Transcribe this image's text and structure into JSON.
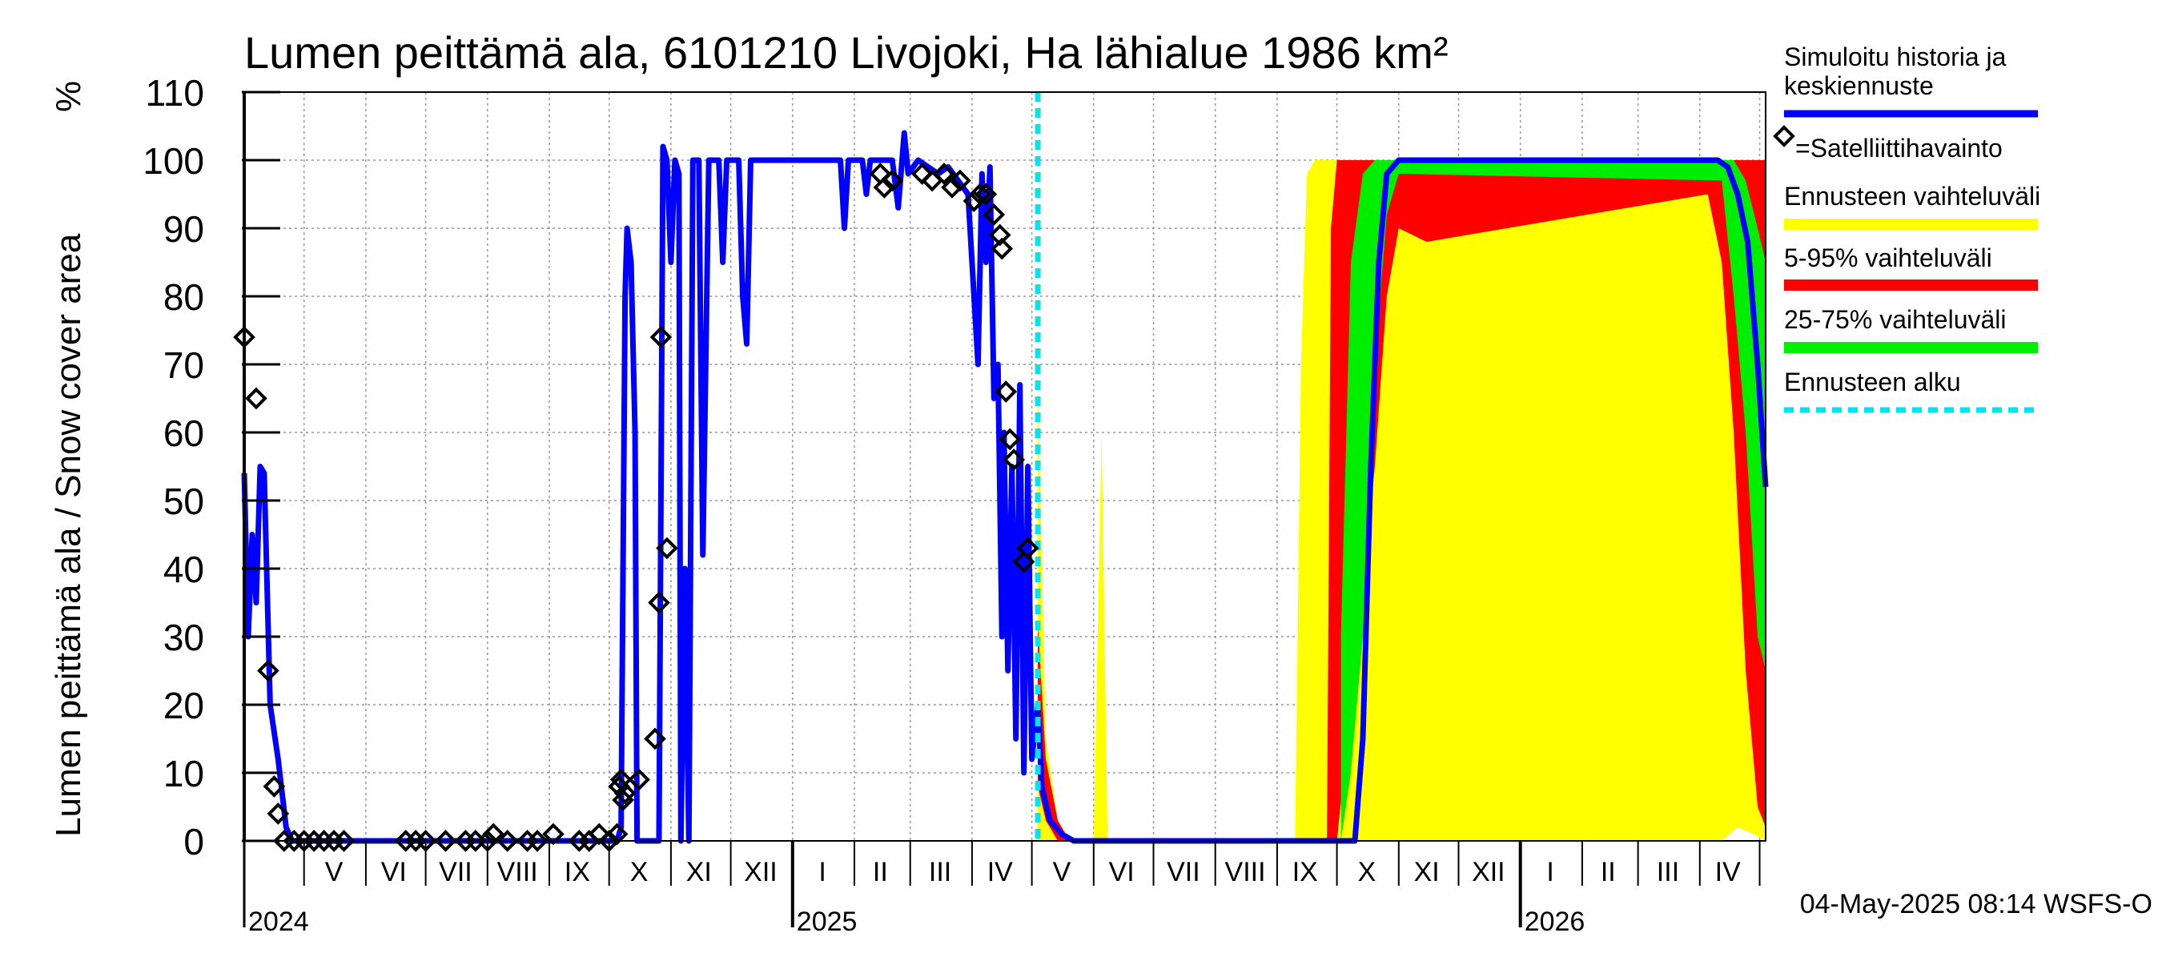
{
  "chart_data": {
    "type": "area",
    "title": "Lumen peittämä ala, 6101210 Livojoki, Ha lähialue 1986 km²",
    "ylabel": "Lumen peittämä ala / Snow cover area",
    "yunit": "%",
    "ylim": [
      0,
      110
    ],
    "yticks": [
      0,
      10,
      20,
      30,
      40,
      50,
      60,
      70,
      80,
      90,
      100,
      110
    ],
    "xlim": [
      "2024-04-01",
      "2026-05-04"
    ],
    "grid": true,
    "forecast_start": "2025-05-04",
    "month_labels": [
      {
        "label": "V",
        "date": "2024-05-16"
      },
      {
        "label": "VI",
        "date": "2024-06-15"
      },
      {
        "label": "VII",
        "date": "2024-07-16"
      },
      {
        "label": "VIII",
        "date": "2024-08-16"
      },
      {
        "label": "IX",
        "date": "2024-09-15"
      },
      {
        "label": "X",
        "date": "2024-10-16"
      },
      {
        "label": "XI",
        "date": "2024-11-15"
      },
      {
        "label": "XII",
        "date": "2024-12-16"
      },
      {
        "label": "I",
        "date": "2025-01-16"
      },
      {
        "label": "II",
        "date": "2025-02-14"
      },
      {
        "label": "III",
        "date": "2025-03-16"
      },
      {
        "label": "IV",
        "date": "2025-04-15"
      },
      {
        "label": "V",
        "date": "2025-05-16"
      },
      {
        "label": "VI",
        "date": "2025-06-15"
      },
      {
        "label": "VII",
        "date": "2025-07-16"
      },
      {
        "label": "VIII",
        "date": "2025-08-16"
      },
      {
        "label": "IX",
        "date": "2025-09-15"
      },
      {
        "label": "X",
        "date": "2025-10-16"
      },
      {
        "label": "XI",
        "date": "2025-11-15"
      },
      {
        "label": "XII",
        "date": "2025-12-16"
      },
      {
        "label": "I",
        "date": "2026-01-16"
      },
      {
        "label": "II",
        "date": "2026-02-14"
      },
      {
        "label": "III",
        "date": "2026-03-16"
      },
      {
        "label": "IV",
        "date": "2026-04-15"
      }
    ],
    "year_labels": [
      {
        "label": "2024",
        "date": "2024-04-01"
      },
      {
        "label": "2025",
        "date": "2025-01-01"
      },
      {
        "label": "2026",
        "date": "2026-01-01"
      }
    ],
    "legend": [
      {
        "key": "sim",
        "label": "Simuloitu historia ja keskiennuste",
        "color": "#0000ff",
        "style": "line"
      },
      {
        "key": "sat",
        "label": "=Satelliittihavainto",
        "color": "#000000",
        "style": "diamond"
      },
      {
        "key": "range",
        "label": "Ennusteen vaihteluväli",
        "color": "#ffff00",
        "style": "band"
      },
      {
        "key": "p595",
        "label": "5-95% vaihteluväli",
        "color": "#ff0000",
        "style": "band"
      },
      {
        "key": "p2575",
        "label": "25-75% vaihteluväli",
        "color": "#00ee00",
        "style": "band"
      },
      {
        "key": "start",
        "label": "Ennusteen alku",
        "color": "#00e5ee",
        "style": "dashed"
      }
    ],
    "series": [
      {
        "name": "Simuloitu historia ja keskiennuste",
        "color": "#0000ff",
        "points": [
          [
            "2024-04-01",
            54
          ],
          [
            "2024-04-03",
            30
          ],
          [
            "2024-04-05",
            45
          ],
          [
            "2024-04-07",
            35
          ],
          [
            "2024-04-09",
            55
          ],
          [
            "2024-04-11",
            54
          ],
          [
            "2024-04-14",
            20
          ],
          [
            "2024-04-18",
            12
          ],
          [
            "2024-04-22",
            2
          ],
          [
            "2024-04-25",
            0
          ],
          [
            "2024-10-05",
            0
          ],
          [
            "2024-10-07",
            2
          ],
          [
            "2024-10-09",
            80
          ],
          [
            "2024-10-10",
            90
          ],
          [
            "2024-10-12",
            85
          ],
          [
            "2024-10-14",
            60
          ],
          [
            "2024-10-15",
            0
          ],
          [
            "2024-10-26",
            0
          ],
          [
            "2024-10-28",
            102
          ],
          [
            "2024-10-30",
            100
          ],
          [
            "2024-11-01",
            85
          ],
          [
            "2024-11-03",
            100
          ],
          [
            "2024-11-05",
            98
          ],
          [
            "2024-11-06",
            0
          ],
          [
            "2024-11-08",
            40
          ],
          [
            "2024-11-10",
            0
          ],
          [
            "2024-11-12",
            100
          ],
          [
            "2024-11-15",
            100
          ],
          [
            "2024-11-17",
            42
          ],
          [
            "2024-11-20",
            100
          ],
          [
            "2024-11-25",
            100
          ],
          [
            "2024-11-27",
            85
          ],
          [
            "2024-11-29",
            100
          ],
          [
            "2024-12-05",
            100
          ],
          [
            "2024-12-07",
            80
          ],
          [
            "2024-12-09",
            73
          ],
          [
            "2024-12-11",
            100
          ],
          [
            "2025-01-01",
            100
          ],
          [
            "2025-01-25",
            100
          ],
          [
            "2025-01-27",
            90
          ],
          [
            "2025-01-29",
            100
          ],
          [
            "2025-02-05",
            100
          ],
          [
            "2025-02-07",
            95
          ],
          [
            "2025-02-09",
            100
          ],
          [
            "2025-02-20",
            100
          ],
          [
            "2025-02-23",
            93
          ],
          [
            "2025-02-26",
            104
          ],
          [
            "2025-02-28",
            98
          ],
          [
            "2025-03-05",
            100
          ],
          [
            "2025-03-15",
            98
          ],
          [
            "2025-03-20",
            99
          ],
          [
            "2025-03-25",
            97
          ],
          [
            "2025-03-30",
            95
          ],
          [
            "2025-04-02",
            80
          ],
          [
            "2025-04-04",
            70
          ],
          [
            "2025-04-06",
            98
          ],
          [
            "2025-04-08",
            85
          ],
          [
            "2025-04-10",
            99
          ],
          [
            "2025-04-12",
            65
          ],
          [
            "2025-04-14",
            70
          ],
          [
            "2025-04-16",
            30
          ],
          [
            "2025-04-17",
            60
          ],
          [
            "2025-04-19",
            25
          ],
          [
            "2025-04-21",
            55
          ],
          [
            "2025-04-23",
            15
          ],
          [
            "2025-04-25",
            67
          ],
          [
            "2025-04-27",
            10
          ],
          [
            "2025-04-29",
            55
          ],
          [
            "2025-05-01",
            12
          ],
          [
            "2025-05-04",
            20
          ],
          [
            "2025-05-06",
            8
          ],
          [
            "2025-05-10",
            3
          ],
          [
            "2025-05-16",
            1
          ],
          [
            "2025-05-22",
            0
          ],
          [
            "2025-10-10",
            0
          ],
          [
            "2025-10-14",
            15
          ],
          [
            "2025-10-18",
            55
          ],
          [
            "2025-10-22",
            85
          ],
          [
            "2025-10-26",
            98
          ],
          [
            "2025-11-01",
            100
          ],
          [
            "2026-04-10",
            100
          ],
          [
            "2026-04-15",
            99
          ],
          [
            "2026-04-20",
            95
          ],
          [
            "2026-04-25",
            88
          ],
          [
            "2026-04-30",
            70
          ],
          [
            "2026-05-04",
            52
          ]
        ]
      }
    ],
    "bands": [
      {
        "name": "Ennusteen vaihteluväli",
        "color": "#ffff00",
        "points": [
          [
            "2025-05-04",
            0,
            67
          ],
          [
            "2025-05-08",
            0,
            15
          ],
          [
            "2025-05-14",
            0,
            3
          ],
          [
            "2025-05-20",
            0,
            0
          ],
          [
            "2025-06-01",
            0,
            0
          ],
          [
            "2025-06-05",
            0,
            60
          ],
          [
            "2025-06-08",
            0,
            0
          ],
          [
            "2025-09-10",
            0,
            0
          ],
          [
            "2025-09-13",
            0,
            70
          ],
          [
            "2025-09-16",
            0,
            98
          ],
          [
            "2025-09-20",
            0,
            100
          ],
          [
            "2026-04-05",
            0,
            100
          ],
          [
            "2026-04-12",
            0,
            99
          ],
          [
            "2026-04-20",
            2,
            95
          ],
          [
            "2026-04-28",
            1,
            85
          ],
          [
            "2026-05-04",
            0,
            80
          ]
        ]
      },
      {
        "name": "5-95% vaihteluväli",
        "color": "#ff0000",
        "points": [
          [
            "2025-05-04",
            8,
            32
          ],
          [
            "2025-05-08",
            3,
            12
          ],
          [
            "2025-05-14",
            0,
            3
          ],
          [
            "2025-05-20",
            0,
            0
          ],
          [
            "2025-09-26",
            0,
            0
          ],
          [
            "2025-09-28",
            0,
            90
          ],
          [
            "2025-10-01",
            0,
            100
          ],
          [
            "2025-10-08",
            20,
            100
          ],
          [
            "2025-10-15",
            40,
            100
          ],
          [
            "2025-10-20",
            55,
            100
          ],
          [
            "2025-10-26",
            80,
            100
          ],
          [
            "2025-11-01",
            90,
            100
          ],
          [
            "2025-11-15",
            88,
            100
          ],
          [
            "2026-04-05",
            95,
            100
          ],
          [
            "2026-04-12",
            85,
            100
          ],
          [
            "2026-04-18",
            60,
            100
          ],
          [
            "2026-04-24",
            25,
            100
          ],
          [
            "2026-04-30",
            5,
            100
          ],
          [
            "2026-05-04",
            2,
            100
          ]
        ]
      },
      {
        "name": "25-75% vaihteluväli",
        "color": "#00ee00",
        "points": [
          [
            "2025-10-03",
            0,
            30
          ],
          [
            "2025-10-08",
            10,
            85
          ],
          [
            "2025-10-14",
            30,
            98
          ],
          [
            "2025-10-20",
            70,
            100
          ],
          [
            "2025-10-26",
            92,
            100
          ],
          [
            "2025-11-01",
            98,
            100
          ],
          [
            "2026-04-12",
            97,
            100
          ],
          [
            "2026-04-18",
            80,
            100
          ],
          [
            "2026-04-24",
            60,
            97
          ],
          [
            "2026-04-30",
            30,
            90
          ],
          [
            "2026-05-04",
            25,
            85
          ]
        ]
      }
    ],
    "observations": [
      [
        "2024-04-01",
        74
      ],
      [
        "2024-04-07",
        65
      ],
      [
        "2024-04-13",
        25
      ],
      [
        "2024-04-16",
        8
      ],
      [
        "2024-04-18",
        4
      ],
      [
        "2024-04-21",
        0
      ],
      [
        "2024-04-26",
        0
      ],
      [
        "2024-05-01",
        0
      ],
      [
        "2024-05-06",
        0
      ],
      [
        "2024-05-11",
        0
      ],
      [
        "2024-05-16",
        0
      ],
      [
        "2024-05-21",
        0
      ],
      [
        "2024-06-21",
        0
      ],
      [
        "2024-06-26",
        0
      ],
      [
        "2024-07-01",
        0
      ],
      [
        "2024-07-11",
        0
      ],
      [
        "2024-07-21",
        0
      ],
      [
        "2024-07-26",
        0
      ],
      [
        "2024-08-01",
        0
      ],
      [
        "2024-08-04",
        1
      ],
      [
        "2024-08-11",
        0
      ],
      [
        "2024-08-21",
        0
      ],
      [
        "2024-08-26",
        0
      ],
      [
        "2024-09-03",
        1
      ],
      [
        "2024-09-16",
        0
      ],
      [
        "2024-09-21",
        0
      ],
      [
        "2024-09-26",
        1
      ],
      [
        "2024-10-01",
        0
      ],
      [
        "2024-10-05",
        1
      ],
      [
        "2024-10-06",
        8
      ],
      [
        "2024-10-07",
        9
      ],
      [
        "2024-10-08",
        6
      ],
      [
        "2024-10-09",
        7
      ],
      [
        "2024-10-16",
        9
      ],
      [
        "2024-10-24",
        15
      ],
      [
        "2024-10-26",
        35
      ],
      [
        "2024-10-27",
        74
      ],
      [
        "2024-10-30",
        43
      ],
      [
        "2025-02-14",
        98
      ],
      [
        "2025-02-16",
        96
      ],
      [
        "2025-02-20",
        97
      ],
      [
        "2025-03-07",
        98
      ],
      [
        "2025-03-12",
        97
      ],
      [
        "2025-03-18",
        98
      ],
      [
        "2025-03-22",
        96
      ],
      [
        "2025-03-26",
        97
      ],
      [
        "2025-04-02",
        94
      ],
      [
        "2025-04-05",
        95
      ],
      [
        "2025-04-08",
        95
      ],
      [
        "2025-04-12",
        92
      ],
      [
        "2025-04-15",
        89
      ],
      [
        "2025-04-16",
        87
      ],
      [
        "2025-04-18",
        66
      ],
      [
        "2025-04-20",
        59
      ],
      [
        "2025-04-22",
        56
      ],
      [
        "2025-04-27",
        41
      ],
      [
        "2025-04-29",
        43
      ]
    ],
    "footer": "04-May-2025 08:14 WSFS-O"
  }
}
